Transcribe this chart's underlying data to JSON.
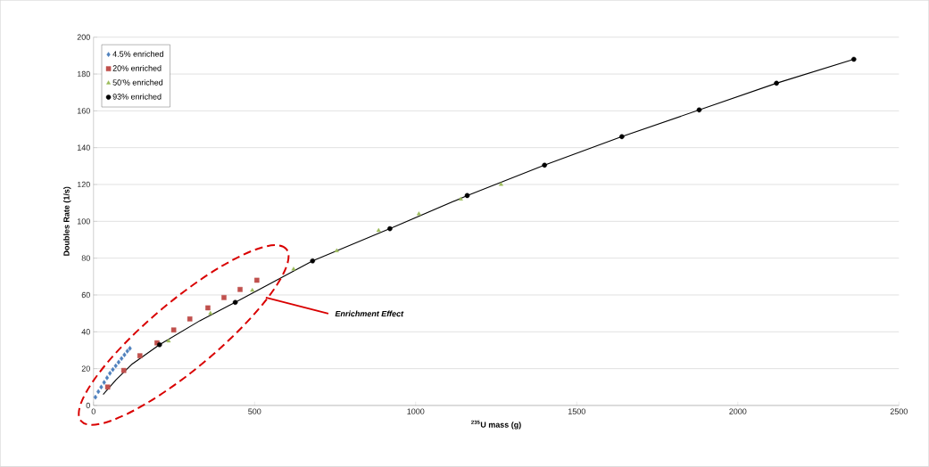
{
  "chart_data": {
    "type": "scatter",
    "xlabel": "$^{235}$U mass (g)",
    "ylabel": "Doubles Rate (1/s)",
    "xlim": [
      0,
      2500
    ],
    "ylim": [
      0,
      200
    ],
    "xticks": [
      0,
      500,
      1000,
      1500,
      2000,
      2500
    ],
    "yticks": [
      0,
      20,
      40,
      60,
      80,
      100,
      120,
      140,
      160,
      180,
      200
    ],
    "grid": "y",
    "legend": "top left",
    "annotations": [
      "Enrichment Effect"
    ],
    "series": [
      {
        "name": "4.5% enriched",
        "color": "#4f81bd",
        "marker": "diamond",
        "x": [
          6,
          15,
          24,
          33,
          42,
          51,
          60,
          69,
          78,
          87,
          96,
          105,
          113
        ],
        "values": [
          4.5,
          7.5,
          10,
          12.5,
          15,
          17.5,
          19.5,
          21.5,
          23.5,
          25.5,
          27.5,
          29.5,
          31
        ]
      },
      {
        "name": "20% enriched",
        "color": "#c0504d",
        "marker": "square",
        "x": [
          44,
          94,
          144,
          197,
          249,
          299,
          355,
          405,
          455,
          507
        ],
        "values": [
          10,
          19,
          27,
          34,
          41,
          47,
          53,
          58.6,
          63,
          68
        ]
      },
      {
        "name": "50'% enriched",
        "color": "#9bbb59",
        "marker": "triangle",
        "x": [
          233,
          363,
          493,
          621,
          755,
          885,
          1010,
          1140,
          1265
        ],
        "values": [
          35,
          50,
          62.5,
          74,
          84,
          95,
          104,
          112,
          120
        ]
      },
      {
        "name": "93% enriched",
        "color": "#000000",
        "marker": "circle",
        "x": [
          205,
          440,
          680,
          920,
          1160,
          1400,
          1640,
          1880,
          2120,
          2360
        ],
        "values": [
          33,
          56,
          78.5,
          96,
          114,
          130.5,
          146,
          160.5,
          175,
          188
        ]
      },
      {
        "type": "line",
        "color": "#000000",
        "marker": "none",
        "x": [
          30,
          70,
          120,
          205,
          330,
          440,
          680,
          920,
          1160,
          1400,
          1640,
          1880,
          2120,
          2360
        ],
        "values": [
          6,
          14,
          22.5,
          33,
          46,
          56,
          78.5,
          96,
          114,
          130.5,
          146,
          160.5,
          175,
          188
        ]
      }
    ]
  }
}
